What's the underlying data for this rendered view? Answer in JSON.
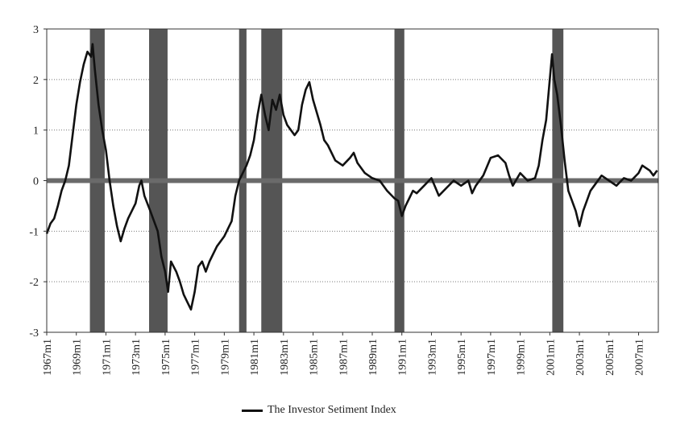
{
  "chart_data": {
    "type": "line",
    "ylim": [
      -3,
      3
    ],
    "xlim": [
      1967.0,
      2008.333
    ],
    "yticks": [
      "3",
      "2",
      "1",
      "0",
      "-1",
      "-2",
      "-3"
    ],
    "xtick_labels": [
      "1967m1",
      "1969m1",
      "1971m1",
      "1973m1",
      "1975m1",
      "1977m1",
      "1979m1",
      "1981m1",
      "1983m1",
      "1985m1",
      "1987m1",
      "1989m1",
      "1991m1",
      "1993m1",
      "1995m1",
      "1997m1",
      "1999m1",
      "2001m1",
      "2003m1",
      "2005m1",
      "2007m1"
    ],
    "grid": "horizontal dotted",
    "legend_placement": "bottom-center",
    "colors": {
      "line": "#111111",
      "recession": "#555555",
      "zero_band": "#7a7a7a"
    },
    "recessions": [
      {
        "start": 1969.917,
        "end": 1970.917
      },
      {
        "start": 1973.917,
        "end": 1975.167
      },
      {
        "start": 1980.0,
        "end": 1980.5
      },
      {
        "start": 1981.5,
        "end": 1982.917
      },
      {
        "start": 1990.5,
        "end": 1991.167
      },
      {
        "start": 2001.167,
        "end": 2001.917
      }
    ],
    "series": [
      {
        "name": "The Investor Setiment Index",
        "points": [
          [
            1967.0,
            -1.05
          ],
          [
            1967.25,
            -0.85
          ],
          [
            1967.5,
            -0.75
          ],
          [
            1967.75,
            -0.5
          ],
          [
            1968.0,
            -0.2
          ],
          [
            1968.25,
            0.0
          ],
          [
            1968.5,
            0.3
          ],
          [
            1968.75,
            0.9
          ],
          [
            1969.0,
            1.5
          ],
          [
            1969.25,
            1.95
          ],
          [
            1969.5,
            2.3
          ],
          [
            1969.75,
            2.55
          ],
          [
            1970.0,
            2.45
          ],
          [
            1970.1,
            2.7
          ],
          [
            1970.25,
            2.2
          ],
          [
            1970.5,
            1.5
          ],
          [
            1970.75,
            1.0
          ],
          [
            1971.0,
            0.6
          ],
          [
            1971.25,
            0.0
          ],
          [
            1971.5,
            -0.5
          ],
          [
            1971.75,
            -0.9
          ],
          [
            1972.0,
            -1.2
          ],
          [
            1972.25,
            -0.95
          ],
          [
            1972.5,
            -0.75
          ],
          [
            1972.75,
            -0.6
          ],
          [
            1973.0,
            -0.45
          ],
          [
            1973.25,
            -0.1
          ],
          [
            1973.4,
            0.0
          ],
          [
            1973.6,
            -0.3
          ],
          [
            1974.0,
            -0.6
          ],
          [
            1974.5,
            -1.0
          ],
          [
            1974.75,
            -1.5
          ],
          [
            1975.0,
            -1.8
          ],
          [
            1975.2,
            -2.2
          ],
          [
            1975.4,
            -1.6
          ],
          [
            1975.75,
            -1.8
          ],
          [
            1976.0,
            -2.0
          ],
          [
            1976.25,
            -2.25
          ],
          [
            1976.5,
            -2.4
          ],
          [
            1976.75,
            -2.55
          ],
          [
            1977.0,
            -2.2
          ],
          [
            1977.25,
            -1.7
          ],
          [
            1977.5,
            -1.6
          ],
          [
            1977.75,
            -1.8
          ],
          [
            1978.0,
            -1.6
          ],
          [
            1978.5,
            -1.3
          ],
          [
            1979.0,
            -1.1
          ],
          [
            1979.5,
            -0.8
          ],
          [
            1979.75,
            -0.3
          ],
          [
            1980.0,
            0.0
          ],
          [
            1980.25,
            0.15
          ],
          [
            1980.5,
            0.3
          ],
          [
            1980.75,
            0.5
          ],
          [
            1981.0,
            0.8
          ],
          [
            1981.25,
            1.3
          ],
          [
            1981.5,
            1.7
          ],
          [
            1981.75,
            1.3
          ],
          [
            1982.0,
            1.0
          ],
          [
            1982.25,
            1.6
          ],
          [
            1982.5,
            1.4
          ],
          [
            1982.75,
            1.7
          ],
          [
            1983.0,
            1.3
          ],
          [
            1983.25,
            1.1
          ],
          [
            1983.5,
            1.0
          ],
          [
            1983.75,
            0.9
          ],
          [
            1984.0,
            1.0
          ],
          [
            1984.25,
            1.5
          ],
          [
            1984.5,
            1.8
          ],
          [
            1984.75,
            1.95
          ],
          [
            1985.0,
            1.6
          ],
          [
            1985.5,
            1.1
          ],
          [
            1985.75,
            0.8
          ],
          [
            1986.0,
            0.7
          ],
          [
            1986.5,
            0.4
          ],
          [
            1987.0,
            0.3
          ],
          [
            1987.5,
            0.45
          ],
          [
            1987.75,
            0.55
          ],
          [
            1988.0,
            0.35
          ],
          [
            1988.5,
            0.15
          ],
          [
            1989.0,
            0.05
          ],
          [
            1989.5,
            0.0
          ],
          [
            1990.0,
            -0.2
          ],
          [
            1990.5,
            -0.35
          ],
          [
            1990.75,
            -0.4
          ],
          [
            1991.0,
            -0.7
          ],
          [
            1991.25,
            -0.5
          ],
          [
            1991.5,
            -0.35
          ],
          [
            1991.75,
            -0.2
          ],
          [
            1992.0,
            -0.25
          ],
          [
            1992.5,
            -0.1
          ],
          [
            1993.0,
            0.05
          ],
          [
            1993.5,
            -0.3
          ],
          [
            1994.0,
            -0.15
          ],
          [
            1994.5,
            0.0
          ],
          [
            1995.0,
            -0.1
          ],
          [
            1995.5,
            0.0
          ],
          [
            1995.75,
            -0.25
          ],
          [
            1996.0,
            -0.1
          ],
          [
            1996.5,
            0.1
          ],
          [
            1997.0,
            0.45
          ],
          [
            1997.5,
            0.5
          ],
          [
            1998.0,
            0.35
          ],
          [
            1998.25,
            0.1
          ],
          [
            1998.5,
            -0.1
          ],
          [
            1999.0,
            0.15
          ],
          [
            1999.5,
            0.0
          ],
          [
            2000.0,
            0.05
          ],
          [
            2000.25,
            0.3
          ],
          [
            2000.5,
            0.8
          ],
          [
            2000.75,
            1.2
          ],
          [
            2001.0,
            2.0
          ],
          [
            2001.15,
            2.5
          ],
          [
            2001.3,
            2.0
          ],
          [
            2001.5,
            1.7
          ],
          [
            2001.75,
            1.1
          ],
          [
            2002.0,
            0.4
          ],
          [
            2002.25,
            -0.2
          ],
          [
            2002.5,
            -0.4
          ],
          [
            2002.75,
            -0.6
          ],
          [
            2003.0,
            -0.9
          ],
          [
            2003.25,
            -0.6
          ],
          [
            2003.5,
            -0.4
          ],
          [
            2003.75,
            -0.2
          ],
          [
            2004.0,
            -0.1
          ],
          [
            2004.5,
            0.1
          ],
          [
            2005.0,
            0.0
          ],
          [
            2005.5,
            -0.1
          ],
          [
            2006.0,
            0.05
          ],
          [
            2006.5,
            0.0
          ],
          [
            2007.0,
            0.15
          ],
          [
            2007.25,
            0.3
          ],
          [
            2007.5,
            0.25
          ],
          [
            2007.75,
            0.2
          ],
          [
            2008.0,
            0.1
          ],
          [
            2008.25,
            0.2
          ]
        ]
      }
    ]
  },
  "legend": {
    "label": "The Investor Setiment Index"
  }
}
